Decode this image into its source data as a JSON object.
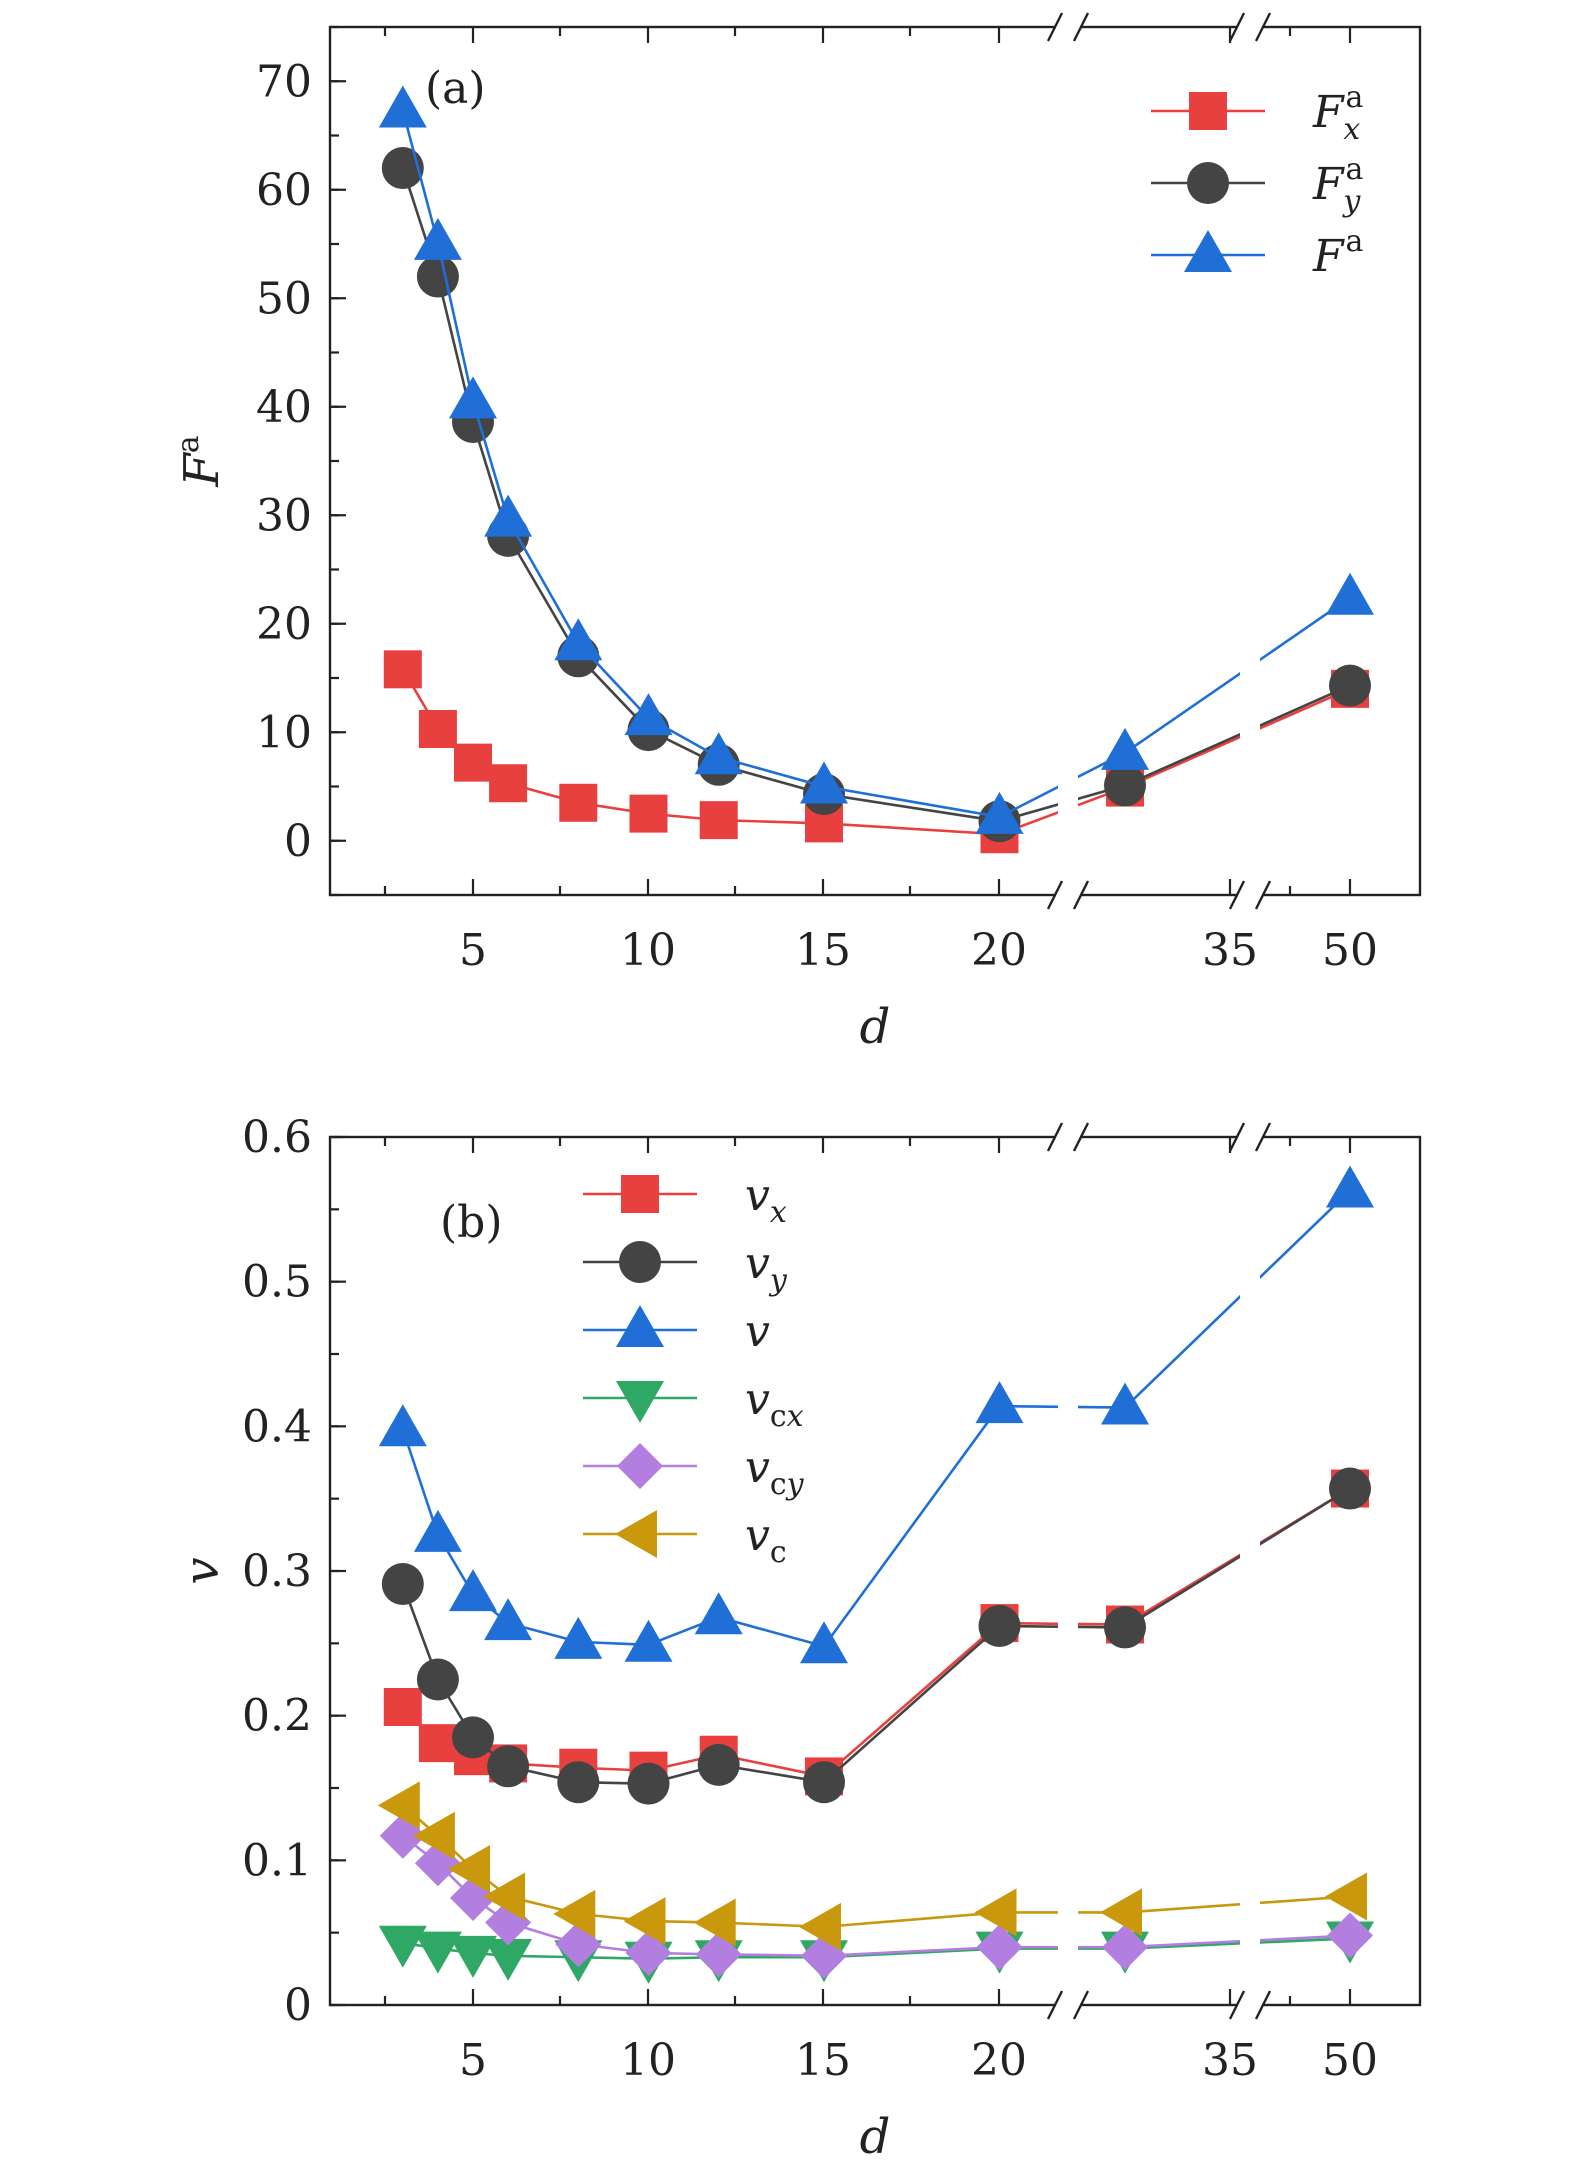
{
  "chart_data": [
    {
      "panel": "(a)",
      "type": "line",
      "xlabel": "d",
      "ylabel": "F",
      "ylabel_sup": "a",
      "ylim": [
        -5,
        75
      ],
      "yticks": [
        0,
        10,
        20,
        30,
        40,
        50,
        60,
        70
      ],
      "xticks": [
        "5",
        "10",
        "15",
        "20",
        "35",
        "50"
      ],
      "axis_break": true,
      "legend_position": "top-right",
      "series": [
        {
          "name": "F",
          "sub": "x",
          "sup": "a",
          "marker": "square",
          "color": "#e8403f",
          "x": [
            3,
            4,
            5,
            6,
            8,
            10,
            12,
            15,
            20,
            27,
            50
          ],
          "y": [
            15.8,
            10.3,
            7.2,
            5.3,
            3.5,
            2.5,
            1.9,
            1.6,
            0.6,
            4.9,
            14.0
          ]
        },
        {
          "name": "F",
          "sub": "y",
          "sup": "a",
          "marker": "circle",
          "color": "#444444",
          "x": [
            3,
            4,
            5,
            6,
            8,
            10,
            12,
            15,
            20,
            27,
            50
          ],
          "y": [
            62.0,
            52.0,
            38.6,
            28.1,
            17.0,
            10.2,
            7.0,
            4.3,
            1.8,
            5.1,
            14.3
          ]
        },
        {
          "name": "F",
          "sub": "",
          "sup": "a",
          "marker": "triangle-up",
          "color": "#1f6fd6",
          "x": [
            3,
            4,
            5,
            6,
            8,
            10,
            12,
            15,
            20,
            27,
            50
          ],
          "y": [
            67.3,
            55.1,
            40.5,
            29.6,
            18.2,
            11.3,
            7.7,
            5.0,
            2.2,
            8.1,
            22.4
          ]
        }
      ]
    },
    {
      "panel": "(b)",
      "type": "line",
      "xlabel": "d",
      "ylabel": "v",
      "ylim": [
        0,
        0.6
      ],
      "yticks": [
        "0",
        "0.1",
        "0.2",
        "0.3",
        "0.4",
        "0.5",
        "0.6"
      ],
      "xticks": [
        "5",
        "10",
        "15",
        "20",
        "35",
        "50"
      ],
      "axis_break": true,
      "legend_position": "top-center",
      "series": [
        {
          "name": "v",
          "sub": "x",
          "marker": "square",
          "color": "#e8403f",
          "x": [
            3,
            4,
            5,
            6,
            8,
            10,
            12,
            15,
            20,
            27,
            50
          ],
          "y": [
            0.206,
            0.181,
            0.172,
            0.167,
            0.164,
            0.162,
            0.173,
            0.158,
            0.264,
            0.263,
            0.357
          ]
        },
        {
          "name": "v",
          "sub": "y",
          "marker": "circle",
          "color": "#444444",
          "x": [
            3,
            4,
            5,
            6,
            8,
            10,
            12,
            15,
            20,
            27,
            50
          ],
          "y": [
            0.291,
            0.225,
            0.185,
            0.165,
            0.154,
            0.153,
            0.166,
            0.154,
            0.262,
            0.261,
            0.357
          ]
        },
        {
          "name": "v",
          "sub": "",
          "marker": "triangle-up",
          "color": "#1f6fd6",
          "x": [
            3,
            4,
            5,
            6,
            8,
            10,
            12,
            15,
            20,
            27,
            50
          ],
          "y": [
            0.398,
            0.325,
            0.284,
            0.264,
            0.251,
            0.249,
            0.268,
            0.248,
            0.414,
            0.413,
            0.563
          ]
        },
        {
          "name": "v",
          "sub": "cx",
          "marker": "triangle-down",
          "color": "#2fa866",
          "x": [
            3,
            4,
            5,
            6,
            8,
            10,
            12,
            15,
            20,
            27,
            50
          ],
          "y": [
            0.043,
            0.039,
            0.036,
            0.034,
            0.033,
            0.032,
            0.033,
            0.033,
            0.039,
            0.039,
            0.046
          ]
        },
        {
          "name": "v",
          "sub": "cy",
          "marker": "diamond",
          "color": "#b27fe0",
          "x": [
            3,
            4,
            5,
            6,
            8,
            10,
            12,
            15,
            20,
            27,
            50
          ],
          "y": [
            0.117,
            0.098,
            0.074,
            0.057,
            0.042,
            0.036,
            0.035,
            0.034,
            0.04,
            0.04,
            0.048
          ]
        },
        {
          "name": "v",
          "sub": "c",
          "marker": "triangle-left",
          "color": "#c9980c",
          "x": [
            3,
            4,
            5,
            6,
            8,
            10,
            12,
            15,
            20,
            27,
            50
          ],
          "y": [
            0.138,
            0.117,
            0.094,
            0.075,
            0.063,
            0.058,
            0.057,
            0.054,
            0.064,
            0.064,
            0.075
          ]
        }
      ]
    }
  ]
}
